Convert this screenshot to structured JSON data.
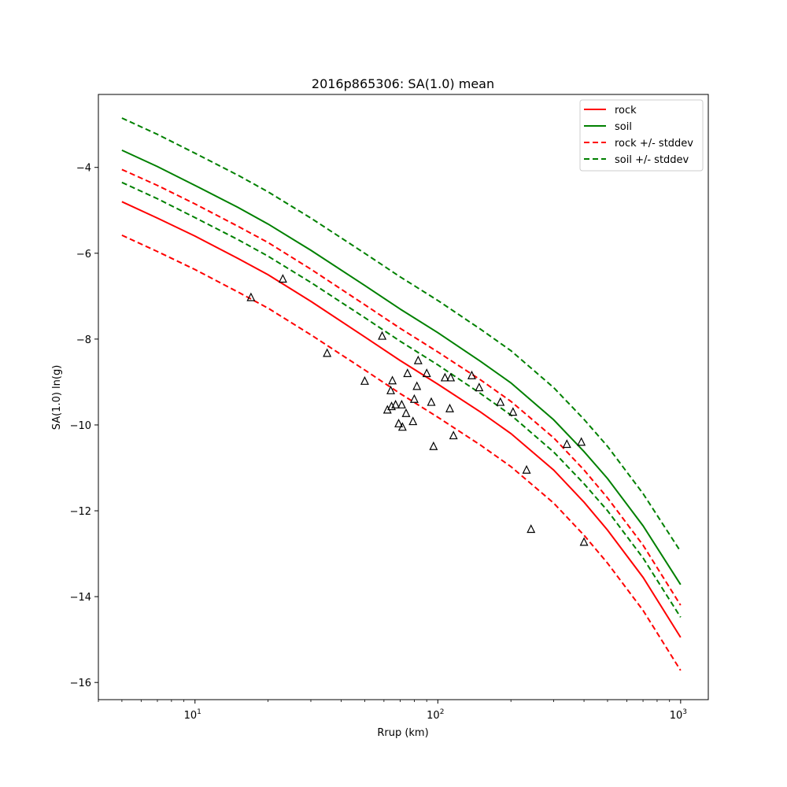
{
  "chart_data": {
    "type": "line",
    "title": "2016p865306: SA(1.0) mean",
    "xlabel": "Rrup (km)",
    "ylabel": "SA(1.0) ln(g)",
    "x_scale": "log",
    "xlim": [
      4,
      1300
    ],
    "ylim": [
      -16.4,
      -2.3
    ],
    "x_ticks": [
      {
        "value": 10,
        "base": "10",
        "exp": "1"
      },
      {
        "value": 100,
        "base": "10",
        "exp": "2"
      },
      {
        "value": 1000,
        "base": "10",
        "exp": "3"
      }
    ],
    "y_ticks": [
      {
        "value": -4,
        "label": "−4"
      },
      {
        "value": -6,
        "label": "−6"
      },
      {
        "value": -8,
        "label": "−8"
      },
      {
        "value": -10,
        "label": "−10"
      },
      {
        "value": -12,
        "label": "−12"
      },
      {
        "value": -14,
        "label": "−14"
      },
      {
        "value": -16,
        "label": "−16"
      }
    ],
    "grid": false,
    "legend_position": "top-right",
    "series": [
      {
        "name": "rock",
        "color": "#ff0000",
        "style": "solid",
        "x": [
          5,
          7,
          10,
          15,
          20,
          30,
          50,
          70,
          100,
          150,
          200,
          300,
          400,
          500,
          700,
          1000
        ],
        "y": [
          -4.8,
          -5.18,
          -5.6,
          -6.12,
          -6.5,
          -7.12,
          -7.95,
          -8.5,
          -9.05,
          -9.7,
          -10.2,
          -11.05,
          -11.8,
          -12.45,
          -13.55,
          -14.95
        ]
      },
      {
        "name": "soil",
        "color": "#008000",
        "style": "solid",
        "x": [
          5,
          7,
          10,
          15,
          20,
          30,
          50,
          70,
          100,
          150,
          200,
          300,
          400,
          500,
          700,
          1000
        ],
        "y": [
          -3.6,
          -3.98,
          -4.42,
          -4.93,
          -5.32,
          -5.93,
          -6.75,
          -7.3,
          -7.85,
          -8.52,
          -9.02,
          -9.88,
          -10.62,
          -11.25,
          -12.35,
          -13.72
        ]
      },
      {
        "name": "rock +/- stddev",
        "color": "#ff0000",
        "style": "dashed",
        "x": [
          5,
          7,
          10,
          15,
          20,
          30,
          50,
          70,
          100,
          150,
          200,
          300,
          400,
          500,
          700,
          1000
        ],
        "y": [
          -4.05,
          -4.42,
          -4.85,
          -5.37,
          -5.75,
          -6.37,
          -7.2,
          -7.75,
          -8.3,
          -8.95,
          -9.45,
          -10.3,
          -11.05,
          -11.7,
          -12.8,
          -14.2
        ]
      },
      {
        "name": "",
        "color": "#ff0000",
        "style": "dashed",
        "x": [
          5,
          7,
          10,
          15,
          20,
          30,
          50,
          70,
          100,
          150,
          200,
          300,
          400,
          500,
          700,
          1000
        ],
        "y": [
          -5.58,
          -5.96,
          -6.38,
          -6.9,
          -7.28,
          -7.9,
          -8.72,
          -9.27,
          -9.82,
          -10.47,
          -10.97,
          -11.82,
          -12.57,
          -13.22,
          -14.32,
          -15.72
        ]
      },
      {
        "name": "soil +/- stddev",
        "color": "#008000",
        "style": "dashed",
        "x": [
          5,
          7,
          10,
          15,
          20,
          30,
          50,
          70,
          100,
          150,
          200,
          300,
          400,
          500,
          700,
          1000
        ],
        "y": [
          -2.85,
          -3.23,
          -3.67,
          -4.18,
          -4.57,
          -5.18,
          -6.0,
          -6.55,
          -7.1,
          -7.77,
          -8.27,
          -9.13,
          -9.87,
          -10.5,
          -11.6,
          -12.95
        ]
      },
      {
        "name": "",
        "color": "#008000",
        "style": "dashed",
        "x": [
          5,
          7,
          10,
          15,
          20,
          30,
          50,
          70,
          100,
          150,
          200,
          300,
          400,
          500,
          700,
          1000
        ],
        "y": [
          -4.35,
          -4.73,
          -5.17,
          -5.68,
          -6.07,
          -6.68,
          -7.5,
          -8.05,
          -8.6,
          -9.27,
          -9.77,
          -10.63,
          -11.37,
          -12.0,
          -13.1,
          -14.48
        ]
      }
    ],
    "observations": {
      "marker": "triangle-open",
      "color": "#000000",
      "points": [
        {
          "x": 17,
          "y": -7.03
        },
        {
          "x": 23,
          "y": -6.6
        },
        {
          "x": 35,
          "y": -8.33
        },
        {
          "x": 50,
          "y": -8.98
        },
        {
          "x": 59,
          "y": -7.93
        },
        {
          "x": 62,
          "y": -9.65
        },
        {
          "x": 64,
          "y": -9.2
        },
        {
          "x": 64.5,
          "y": -9.57
        },
        {
          "x": 65,
          "y": -8.97
        },
        {
          "x": 67,
          "y": -9.53
        },
        {
          "x": 69,
          "y": -9.97
        },
        {
          "x": 71,
          "y": -9.53
        },
        {
          "x": 71.5,
          "y": -10.05
        },
        {
          "x": 74,
          "y": -9.73
        },
        {
          "x": 75,
          "y": -8.8
        },
        {
          "x": 79,
          "y": -9.92
        },
        {
          "x": 80,
          "y": -9.4
        },
        {
          "x": 82,
          "y": -9.1
        },
        {
          "x": 83,
          "y": -8.5
        },
        {
          "x": 90,
          "y": -8.8
        },
        {
          "x": 94,
          "y": -9.47
        },
        {
          "x": 96,
          "y": -10.5
        },
        {
          "x": 107,
          "y": -8.9
        },
        {
          "x": 112,
          "y": -9.62
        },
        {
          "x": 113,
          "y": -8.9
        },
        {
          "x": 116,
          "y": -10.25
        },
        {
          "x": 138,
          "y": -8.85
        },
        {
          "x": 148,
          "y": -9.13
        },
        {
          "x": 181,
          "y": -9.47
        },
        {
          "x": 204,
          "y": -9.7
        },
        {
          "x": 232,
          "y": -11.05
        },
        {
          "x": 242,
          "y": -12.43
        },
        {
          "x": 340,
          "y": -10.45
        },
        {
          "x": 390,
          "y": -10.4
        },
        {
          "x": 400,
          "y": -12.73
        }
      ]
    }
  }
}
